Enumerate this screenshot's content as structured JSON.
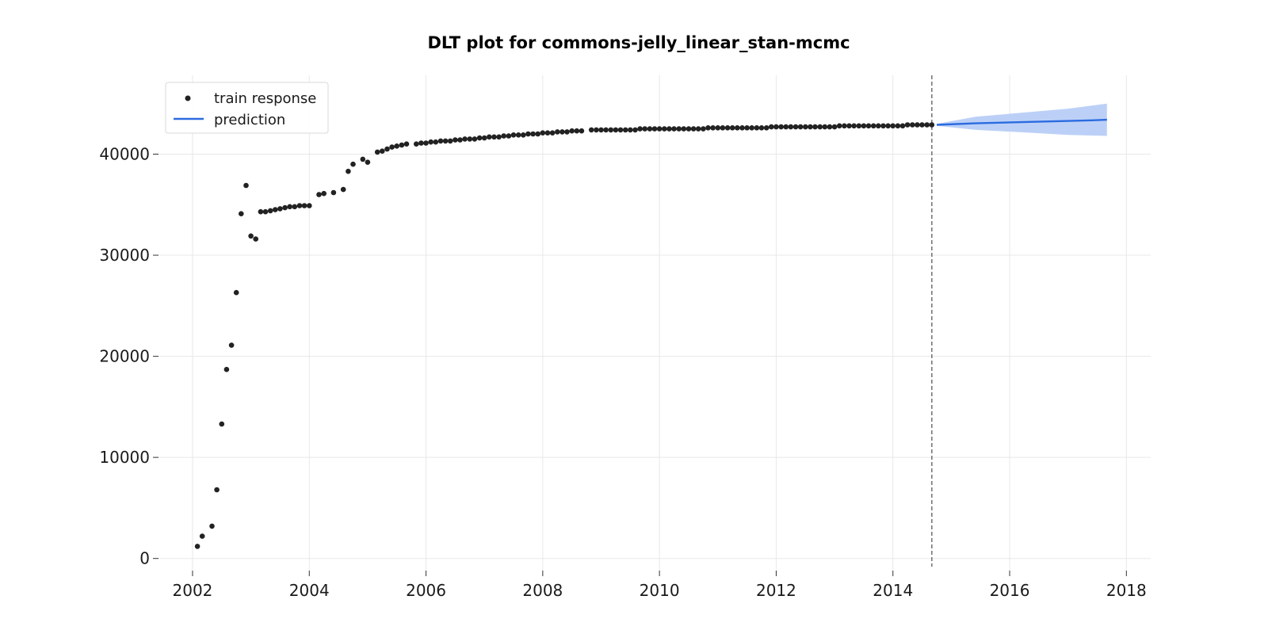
{
  "chart_data": {
    "type": "scatter",
    "title": "DLT plot for commons-jelly_linear_stan-mcmc",
    "xlabel": "",
    "ylabel": "",
    "xlim": [
      "2001-06-01",
      "2018-06-01"
    ],
    "ylim": [
      -1200,
      47800
    ],
    "x_ticks": [
      "2002",
      "2004",
      "2006",
      "2008",
      "2010",
      "2012",
      "2014",
      "2016",
      "2018"
    ],
    "y_ticks": [
      0,
      10000,
      20000,
      30000,
      40000
    ],
    "grid": true,
    "legend_position": "top-left",
    "legend": [
      {
        "label": "train response",
        "marker": "dot"
      },
      {
        "label": "prediction",
        "marker": "line"
      }
    ],
    "series": [
      {
        "name": "train response",
        "kind": "points",
        "color": "#222222",
        "points": [
          [
            "2002-02",
            1200
          ],
          [
            "2002-03",
            2200
          ],
          [
            "2002-05",
            3200
          ],
          [
            "2002-06",
            6800
          ],
          [
            "2002-07",
            13300
          ],
          [
            "2002-08",
            18700
          ],
          [
            "2002-09",
            21100
          ],
          [
            "2002-10",
            26300
          ],
          [
            "2002-11",
            34100
          ],
          [
            "2002-12",
            36900
          ],
          [
            "2003-01",
            31900
          ],
          [
            "2003-02",
            31600
          ],
          [
            "2003-03",
            34300
          ],
          [
            "2003-04",
            34300
          ],
          [
            "2003-05",
            34400
          ],
          [
            "2003-06",
            34500
          ],
          [
            "2003-07",
            34600
          ],
          [
            "2003-08",
            34700
          ],
          [
            "2003-09",
            34800
          ],
          [
            "2003-10",
            34800
          ],
          [
            "2003-11",
            34900
          ],
          [
            "2003-12",
            34900
          ],
          [
            "2004-01",
            34900
          ],
          [
            "2004-03",
            36000
          ],
          [
            "2004-04",
            36100
          ],
          [
            "2004-06",
            36200
          ],
          [
            "2004-08",
            36500
          ],
          [
            "2004-09",
            38300
          ],
          [
            "2004-10",
            39000
          ],
          [
            "2004-12",
            39500
          ],
          [
            "2005-01",
            39200
          ],
          [
            "2005-03",
            40200
          ],
          [
            "2005-04",
            40300
          ],
          [
            "2005-05",
            40500
          ],
          [
            "2005-06",
            40700
          ],
          [
            "2005-07",
            40800
          ],
          [
            "2005-08",
            40900
          ],
          [
            "2005-09",
            41000
          ],
          [
            "2005-11",
            41000
          ],
          [
            "2005-12",
            41100
          ],
          [
            "2006-01",
            41100
          ],
          [
            "2006-02",
            41200
          ],
          [
            "2006-03",
            41200
          ],
          [
            "2006-04",
            41300
          ],
          [
            "2006-05",
            41300
          ],
          [
            "2006-06",
            41300
          ],
          [
            "2006-07",
            41400
          ],
          [
            "2006-08",
            41400
          ],
          [
            "2006-09",
            41500
          ],
          [
            "2006-10",
            41500
          ],
          [
            "2006-11",
            41500
          ],
          [
            "2006-12",
            41600
          ],
          [
            "2007-01",
            41600
          ],
          [
            "2007-02",
            41700
          ],
          [
            "2007-03",
            41700
          ],
          [
            "2007-04",
            41700
          ],
          [
            "2007-05",
            41800
          ],
          [
            "2007-06",
            41800
          ],
          [
            "2007-07",
            41900
          ],
          [
            "2007-08",
            41900
          ],
          [
            "2007-09",
            41900
          ],
          [
            "2007-10",
            42000
          ],
          [
            "2007-11",
            42000
          ],
          [
            "2007-12",
            42000
          ],
          [
            "2008-01",
            42100
          ],
          [
            "2008-02",
            42100
          ],
          [
            "2008-03",
            42100
          ],
          [
            "2008-04",
            42200
          ],
          [
            "2008-05",
            42200
          ],
          [
            "2008-06",
            42200
          ],
          [
            "2008-07",
            42300
          ],
          [
            "2008-08",
            42300
          ],
          [
            "2008-09",
            42300
          ],
          [
            "2008-11",
            42400
          ],
          [
            "2008-12",
            42400
          ],
          [
            "2009-01",
            42400
          ],
          [
            "2009-02",
            42400
          ],
          [
            "2009-03",
            42400
          ],
          [
            "2009-04",
            42400
          ],
          [
            "2009-05",
            42400
          ],
          [
            "2009-06",
            42400
          ],
          [
            "2009-07",
            42400
          ],
          [
            "2009-08",
            42400
          ],
          [
            "2009-09",
            42500
          ],
          [
            "2009-10",
            42500
          ],
          [
            "2009-11",
            42500
          ],
          [
            "2009-12",
            42500
          ],
          [
            "2010-01",
            42500
          ],
          [
            "2010-02",
            42500
          ],
          [
            "2010-03",
            42500
          ],
          [
            "2010-04",
            42500
          ],
          [
            "2010-05",
            42500
          ],
          [
            "2010-06",
            42500
          ],
          [
            "2010-07",
            42500
          ],
          [
            "2010-08",
            42500
          ],
          [
            "2010-09",
            42500
          ],
          [
            "2010-10",
            42500
          ],
          [
            "2010-11",
            42600
          ],
          [
            "2010-12",
            42600
          ],
          [
            "2011-01",
            42600
          ],
          [
            "2011-02",
            42600
          ],
          [
            "2011-03",
            42600
          ],
          [
            "2011-04",
            42600
          ],
          [
            "2011-05",
            42600
          ],
          [
            "2011-06",
            42600
          ],
          [
            "2011-07",
            42600
          ],
          [
            "2011-08",
            42600
          ],
          [
            "2011-09",
            42600
          ],
          [
            "2011-10",
            42600
          ],
          [
            "2011-11",
            42600
          ],
          [
            "2011-12",
            42700
          ],
          [
            "2012-01",
            42700
          ],
          [
            "2012-02",
            42700
          ],
          [
            "2012-03",
            42700
          ],
          [
            "2012-04",
            42700
          ],
          [
            "2012-05",
            42700
          ],
          [
            "2012-06",
            42700
          ],
          [
            "2012-07",
            42700
          ],
          [
            "2012-08",
            42700
          ],
          [
            "2012-09",
            42700
          ],
          [
            "2012-10",
            42700
          ],
          [
            "2012-11",
            42700
          ],
          [
            "2012-12",
            42700
          ],
          [
            "2013-01",
            42700
          ],
          [
            "2013-02",
            42800
          ],
          [
            "2013-03",
            42800
          ],
          [
            "2013-04",
            42800
          ],
          [
            "2013-05",
            42800
          ],
          [
            "2013-06",
            42800
          ],
          [
            "2013-07",
            42800
          ],
          [
            "2013-08",
            42800
          ],
          [
            "2013-09",
            42800
          ],
          [
            "2013-10",
            42800
          ],
          [
            "2013-11",
            42800
          ],
          [
            "2013-12",
            42800
          ],
          [
            "2014-01",
            42800
          ],
          [
            "2014-02",
            42800
          ],
          [
            "2014-03",
            42800
          ],
          [
            "2014-04",
            42900
          ],
          [
            "2014-05",
            42900
          ],
          [
            "2014-06",
            42900
          ],
          [
            "2014-07",
            42900
          ],
          [
            "2014-08",
            42900
          ],
          [
            "2014-09",
            42900
          ]
        ]
      },
      {
        "name": "prediction",
        "kind": "line",
        "color": "#2b6be0",
        "band_color": "#bcd0f7",
        "points": [
          [
            "2014-10",
            42900
          ],
          [
            "2015-06",
            43050
          ],
          [
            "2016-06",
            43200
          ],
          [
            "2017-06",
            43350
          ],
          [
            "2017-09",
            43400
          ]
        ],
        "band": [
          [
            "2014-10",
            42800,
            43000
          ],
          [
            "2015-06",
            42400,
            43700
          ],
          [
            "2016-06",
            42100,
            44200
          ],
          [
            "2017-01",
            41900,
            44500
          ],
          [
            "2017-09",
            41800,
            45000
          ]
        ]
      }
    ],
    "annotations": [
      {
        "type": "vline",
        "x": "2014-09",
        "style": "dashed",
        "color": "#666666"
      }
    ]
  }
}
